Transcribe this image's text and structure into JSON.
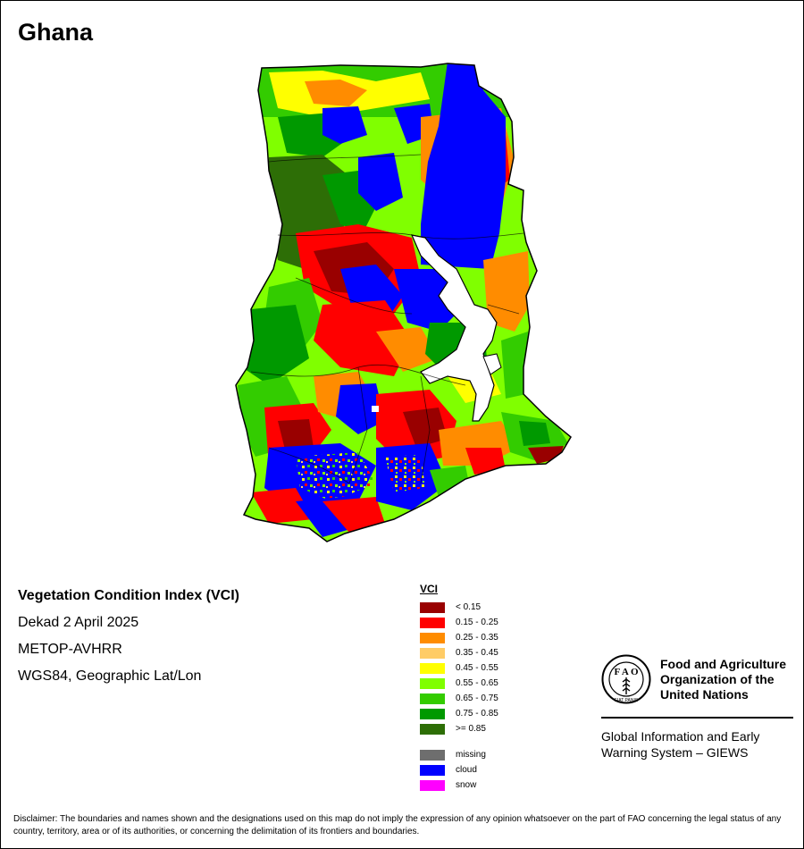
{
  "map": {
    "title": "Ghana"
  },
  "info": {
    "index_name": "Vegetation Condition Index (VCI)",
    "period": "Dekad 2 April 2025",
    "sensor": "METOP-AVHRR",
    "projection": "WGS84, Geographic Lat/Lon"
  },
  "legend": {
    "title": "VCI",
    "classes": [
      {
        "label": "< 0.15",
        "color": "#990000"
      },
      {
        "label": "0.15 - 0.25",
        "color": "#ff0000"
      },
      {
        "label": "0.25 - 0.35",
        "color": "#ff8c00"
      },
      {
        "label": "0.35 - 0.45",
        "color": "#ffcc66"
      },
      {
        "label": "0.45 - 0.55",
        "color": "#ffff00"
      },
      {
        "label": "0.55 - 0.65",
        "color": "#80ff00"
      },
      {
        "label": "0.65 - 0.75",
        "color": "#33cc00"
      },
      {
        "label": "0.75 - 0.85",
        "color": "#009900"
      },
      {
        "label": ">= 0.85",
        "color": "#2d6e06"
      }
    ],
    "special": [
      {
        "label": "missing",
        "color": "#6e6e6e"
      },
      {
        "label": "cloud",
        "color": "#0000ff"
      },
      {
        "label": "snow",
        "color": "#ff00ff"
      }
    ]
  },
  "org": {
    "name_line1": "Food and Agriculture",
    "name_line2": "Organization of the",
    "name_line3": "United Nations",
    "logo_text": "FIAT PANIS",
    "system_line1": "Global Information and Early",
    "system_line2": "Warning System – GIEWS"
  },
  "disclaimer": "Disclaimer: The boundaries and names shown and the designations used on this map do not imply the expression of any opinion whatsoever on the part of FAO concerning the legal status of any country, territory, area or of its authorities, or concerning the delimitation of its frontiers and boundaries."
}
